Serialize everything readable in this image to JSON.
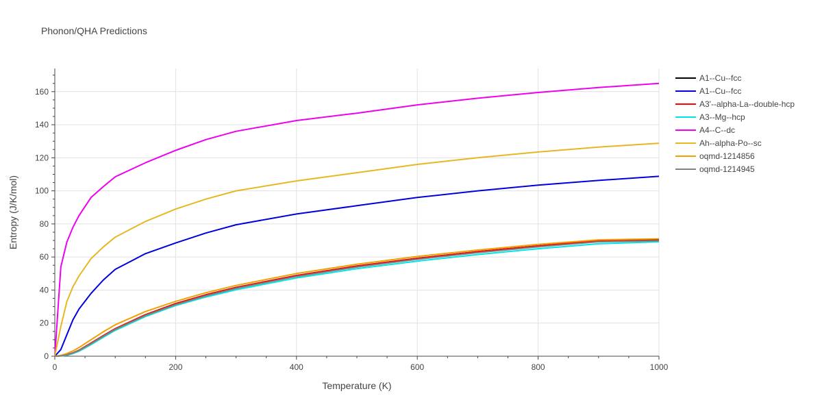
{
  "chart_data": {
    "type": "line",
    "title": "Phonon/QHA Predictions",
    "xlabel": "Temperature (K)",
    "ylabel": "Entropy (J/K/mol)",
    "xlim": [
      0,
      1000
    ],
    "ylim": [
      0,
      174
    ],
    "xticks": [
      0,
      200,
      400,
      600,
      800,
      1000
    ],
    "yticks": [
      0,
      20,
      40,
      60,
      80,
      100,
      120,
      140,
      160
    ],
    "grid": true,
    "legend_position": "right",
    "x": [
      0,
      10,
      20,
      30,
      40,
      60,
      80,
      100,
      150,
      200,
      250,
      300,
      400,
      500,
      600,
      700,
      800,
      900,
      1000
    ],
    "series": [
      {
        "name": "A1--Cu--fcc",
        "color": "#000000",
        "values": [
          0,
          0.2,
          0.9,
          2.0,
          3.6,
          7.9,
          12.4,
          16.6,
          25.1,
          31.8,
          37.1,
          41.6,
          48.8,
          54.5,
          59.2,
          63.2,
          66.7,
          69.8,
          70.3
        ]
      },
      {
        "name": "A1--Cu--fcc",
        "color": "#0000dd",
        "values": [
          0,
          4,
          13,
          22,
          28.5,
          38,
          46,
          52.5,
          62,
          68.5,
          74.5,
          79.5,
          86,
          91,
          96,
          100,
          103.5,
          106.3,
          108.8
        ]
      },
      {
        "name": "A3'--alpha-La--double-hcp",
        "color": "#ff0000",
        "values": [
          0,
          0.2,
          0.9,
          2.0,
          3.6,
          7.9,
          12.4,
          16.6,
          25.1,
          31.8,
          37.1,
          41.6,
          48.8,
          54.5,
          59.2,
          63.2,
          66.7,
          69.8,
          70.0
        ]
      },
      {
        "name": "A3--Mg--hcp",
        "color": "#00e5e5",
        "values": [
          0,
          0.1,
          0.6,
          1.6,
          3.0,
          7.0,
          11.4,
          15.6,
          24.0,
          30.6,
          35.8,
          40.2,
          47.3,
          52.9,
          57.5,
          61.5,
          65.0,
          68.0,
          69.2
        ]
      },
      {
        "name": "A4--C--dc",
        "color": "#ee00ee",
        "values": [
          0,
          54,
          69,
          78,
          85,
          96,
          102.5,
          108.5,
          117,
          124.5,
          131,
          136,
          142.5,
          147,
          152,
          156,
          159.5,
          162.5,
          165
        ]
      },
      {
        "name": "Ah--alpha-Po--sc",
        "color": "#e6b820",
        "values": [
          0,
          18,
          33,
          42,
          48.5,
          59,
          66,
          72,
          81.5,
          89,
          95,
          100,
          106,
          111,
          116,
          120,
          123.5,
          126.5,
          128.8
        ]
      },
      {
        "name": "oqmd-1214856",
        "color": "#f0a000",
        "values": [
          0,
          0.5,
          1.6,
          3.2,
          5.2,
          10.0,
          14.7,
          19.0,
          27.0,
          33.2,
          38.4,
          42.8,
          50.0,
          55.6,
          60.3,
          64.2,
          67.6,
          70.4,
          71.0
        ]
      },
      {
        "name": "oqmd-1214945",
        "color": "#808080",
        "values": [
          0,
          0.2,
          0.8,
          1.9,
          3.4,
          7.6,
          12.0,
          16.2,
          24.6,
          31.2,
          36.5,
          41.0,
          48.2,
          53.9,
          58.6,
          62.6,
          66.1,
          69.2,
          69.8
        ]
      }
    ]
  }
}
